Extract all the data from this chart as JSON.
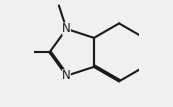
{
  "bg_color": "#f0f0f0",
  "line_color": "#1a1a1a",
  "line_width": 1.5,
  "text_color": "#1a1a1a",
  "font_size": 8.5
}
